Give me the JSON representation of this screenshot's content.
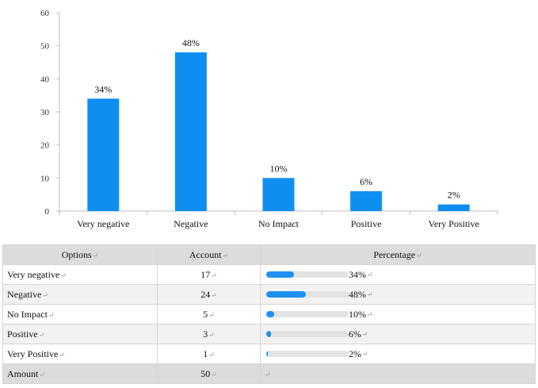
{
  "chart_data": {
    "type": "bar",
    "categories": [
      "Very negative",
      "Negative",
      "No Impact",
      "Positive",
      "Very Positive"
    ],
    "values": [
      34,
      48,
      10,
      6,
      2
    ],
    "data_labels": [
      "34%",
      "48%",
      "10%",
      "6%",
      "2%"
    ],
    "ylim": [
      0,
      60
    ],
    "yticks": [
      0,
      10,
      20,
      30,
      40,
      50,
      60
    ],
    "grid": false,
    "bar_color": "#0f8ef2"
  },
  "table": {
    "headers": [
      "Options",
      "Account",
      "Percentage"
    ],
    "rows": [
      {
        "option": "Very negative",
        "count": "17",
        "percent": "34%",
        "fraction": 0.34
      },
      {
        "option": "Negative",
        "count": "24",
        "percent": "48%",
        "fraction": 0.48
      },
      {
        "option": "No Impact",
        "count": "5",
        "percent": "10%",
        "fraction": 0.1
      },
      {
        "option": "Positive",
        "count": "3",
        "percent": "6%",
        "fraction": 0.06
      },
      {
        "option": "Very Positive",
        "count": "1",
        "percent": "2%",
        "fraction": 0.02
      }
    ],
    "footer": {
      "label": "Amount",
      "count": "50"
    },
    "paragraph_mark": "↵",
    "bar_color": "#1e90ef"
  }
}
